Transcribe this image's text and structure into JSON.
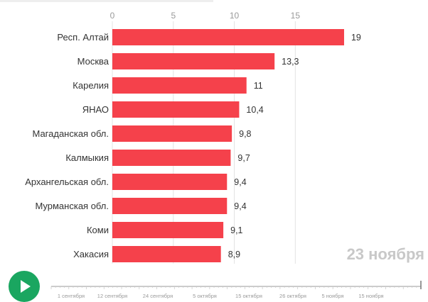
{
  "chart_data": {
    "type": "bar",
    "orientation": "horizontal",
    "categories": [
      "Респ. Алтай",
      "Москва",
      "Карелия",
      "ЯНАО",
      "Магаданская обл.",
      "Калмыкия",
      "Архангельская обл.",
      "Мурманская обл.",
      "Коми",
      "Хакасия"
    ],
    "values": [
      19,
      13.3,
      11,
      10.4,
      9.8,
      9.7,
      9.4,
      9.4,
      9.1,
      8.9
    ],
    "value_labels": [
      "19",
      "13,3",
      "11",
      "10,4",
      "9,8",
      "9,7",
      "9,4",
      "9,4",
      "9,1",
      "8,9"
    ],
    "xticks": [
      "0",
      "5",
      "10",
      "15"
    ],
    "xtick_values": [
      0,
      5,
      10,
      15
    ],
    "xlim": [
      0,
      20.4
    ],
    "bar_color": "#f5414b",
    "current_date_label": "23 ноября"
  },
  "timeline": {
    "labels": [
      "1 сентября",
      "12 сентября",
      "24 сентября",
      "5 октября",
      "15 октября",
      "26 октября",
      "5 ноября",
      "15 ноября"
    ],
    "progress": 1.0
  },
  "controls": {
    "play_icon": "play-icon",
    "play_color": "#1aa660"
  }
}
